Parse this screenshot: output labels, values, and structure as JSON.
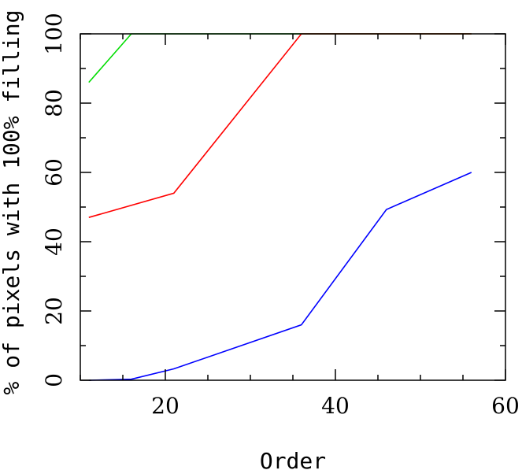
{
  "chart_data": {
    "type": "line",
    "title": "",
    "xlabel": "Order",
    "ylabel": "% of pixels with 100% filling",
    "xlim": [
      10,
      60
    ],
    "ylim": [
      0,
      100
    ],
    "xticks": [
      20,
      40,
      60
    ],
    "yticks": [
      0,
      20,
      40,
      60,
      80,
      100
    ],
    "x_minor_step": 5,
    "y_minor_step": 10,
    "grid": false,
    "series": [
      {
        "color": "#00dd00",
        "x": [
          11,
          16,
          21,
          36,
          46,
          56
        ],
        "y": [
          86,
          100,
          100,
          100,
          100,
          100
        ]
      },
      {
        "color": "#ff0000",
        "x": [
          11,
          21,
          36,
          46,
          56
        ],
        "y": [
          47,
          54,
          100,
          100,
          100
        ]
      },
      {
        "color": "#0000ff",
        "x": [
          11,
          16,
          21,
          36,
          46,
          56
        ],
        "y": [
          0,
          0.3,
          3.3,
          16,
          49.3,
          60
        ]
      }
    ]
  }
}
